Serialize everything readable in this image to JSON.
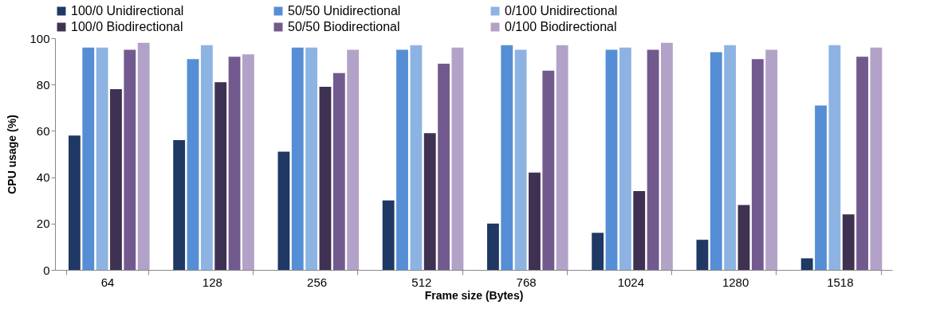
{
  "chart_data": {
    "type": "bar",
    "xlabel": "Frame size (Bytes)",
    "ylabel": "CPU usage (%)",
    "categories": [
      "64",
      "128",
      "256",
      "512",
      "768",
      "1024",
      "1280",
      "1518"
    ],
    "series": [
      {
        "name": "100/0 Unidirectional",
        "color": "#1f3864",
        "values": [
          58,
          56,
          51,
          30,
          20,
          16,
          13,
          5
        ]
      },
      {
        "name": "50/50 Unidirectional",
        "color": "#558ed5",
        "values": [
          96,
          91,
          96,
          95,
          97,
          95,
          94,
          71
        ]
      },
      {
        "name": "0/100 Unidirectional",
        "color": "#8db3e2",
        "values": [
          96,
          97,
          96,
          97,
          95,
          96,
          97,
          97
        ]
      },
      {
        "name": "100/0 Biodirectional",
        "color": "#3f3151",
        "values": [
          78,
          81,
          79,
          59,
          42,
          34,
          28,
          24
        ]
      },
      {
        "name": "50/50 Biodirectional",
        "color": "#725a8f",
        "values": [
          95,
          92,
          85,
          89,
          86,
          95,
          91,
          92
        ]
      },
      {
        "name": "0/100 Biodirectional",
        "color": "#b3a2c7",
        "values": [
          98,
          93,
          95,
          96,
          97,
          98,
          95,
          96
        ]
      }
    ],
    "ylim": [
      0,
      100
    ],
    "yticks": [
      0,
      20,
      40,
      60,
      80,
      100
    ],
    "grid": false,
    "legend": "top"
  }
}
